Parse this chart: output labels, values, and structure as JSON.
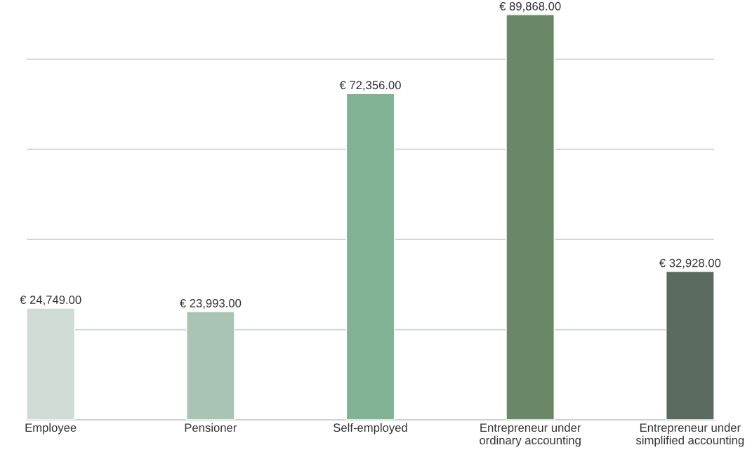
{
  "chart_data": {
    "type": "bar",
    "categories": [
      "Employee",
      "Pensioner",
      "Self-employed",
      "Entrepreneur under\nordinary accounting",
      "Entrepreneur under\nsimplified accounting"
    ],
    "values": [
      24749,
      23993,
      72356,
      89868,
      32928
    ],
    "colors": [
      "#d0dbd5",
      "#a9c4b4",
      "#82b294",
      "#6a8868",
      "#5b6a5e"
    ],
    "value_labels": [
      "€ 24,749.00",
      "€ 23,993.00",
      "€ 72,356.00",
      "€ 89,868.00",
      "€ 32,928.00"
    ],
    "ylim": [
      0,
      90000
    ],
    "yticks": [
      {
        "value": 20000,
        "label": null
      },
      {
        "value": 40000,
        "label": null
      },
      {
        "value": 60000,
        "label": null
      },
      {
        "value": 80000,
        "label": null
      }
    ],
    "grid": "y",
    "legend": false,
    "tick_labels": "x"
  }
}
